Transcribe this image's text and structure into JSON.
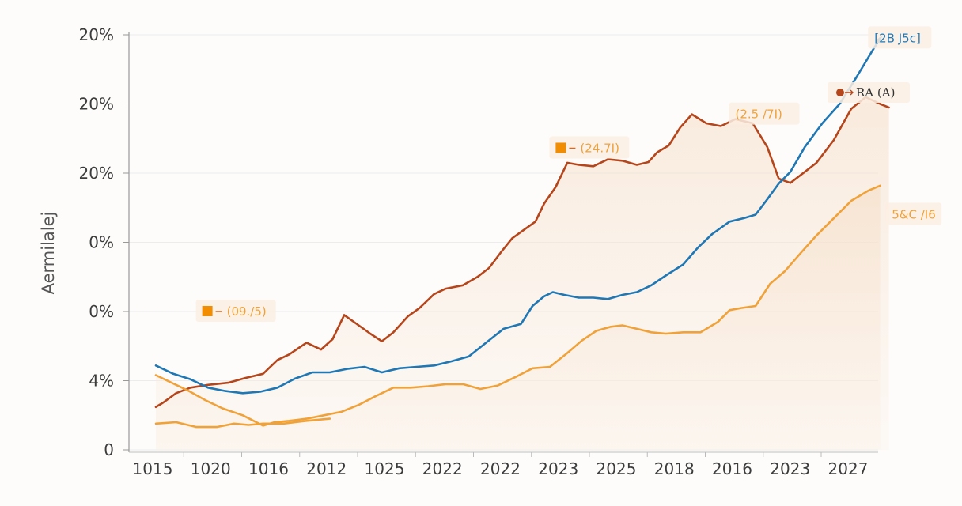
{
  "colors": {
    "dark_orange": "#b5461b",
    "blue": "#1f77b4",
    "orange": "#f0a23a",
    "annotation_box": "#fbeee2",
    "grid": "#ececec",
    "fill": "#f5e3d1"
  },
  "chart_data": {
    "type": "line",
    "title": "",
    "xlabel": "",
    "ylabel": "Aermilalej",
    "ylim": [
      0,
      6
    ],
    "y_ticks": [
      {
        "value": 0,
        "label": "0"
      },
      {
        "value": 1,
        "label": "4%"
      },
      {
        "value": 2,
        "label": "0%"
      },
      {
        "value": 3,
        "label": "0%"
      },
      {
        "value": 4,
        "label": "20%"
      },
      {
        "value": 5,
        "label": "20%"
      },
      {
        "value": 6,
        "label": "20%"
      }
    ],
    "xlim": [
      0,
      12.65
    ],
    "x_ticks": [
      {
        "value": 0,
        "label": "1015"
      },
      {
        "value": 1,
        "label": "1020"
      },
      {
        "value": 2,
        "label": "1016"
      },
      {
        "value": 3,
        "label": "2012"
      },
      {
        "value": 4,
        "label": "1025"
      },
      {
        "value": 5,
        "label": "2022"
      },
      {
        "value": 6,
        "label": "2022"
      },
      {
        "value": 7,
        "label": "2023"
      },
      {
        "value": 8,
        "label": "2025"
      },
      {
        "value": 9,
        "label": "2018"
      },
      {
        "value": 10,
        "label": "2016"
      },
      {
        "value": 11,
        "label": "2023"
      },
      {
        "value": 12,
        "label": "2027"
      }
    ],
    "grid": true,
    "series": [
      {
        "name": "RA (A)",
        "color": "#b5461b",
        "filled": true,
        "x": [
          0,
          0.12,
          0.35,
          0.6,
          0.9,
          1.25,
          1.55,
          1.85,
          2.1,
          2.3,
          2.6,
          2.85,
          3.05,
          3.25,
          3.5,
          3.7,
          3.9,
          4.1,
          4.35,
          4.55,
          4.8,
          5.0,
          5.3,
          5.55,
          5.75,
          5.95,
          6.15,
          6.35,
          6.55,
          6.7,
          6.9,
          7.1,
          7.3,
          7.55,
          7.8,
          8.05,
          8.3,
          8.5,
          8.65,
          8.85,
          9.05,
          9.25,
          9.5,
          9.75,
          10.0,
          10.3,
          10.55,
          10.75,
          10.95,
          11.2,
          11.4,
          11.7,
          12.0,
          12.25,
          12.5,
          12.65
        ],
        "values": [
          0.62,
          0.68,
          0.82,
          0.9,
          0.94,
          0.97,
          1.04,
          1.1,
          1.3,
          1.38,
          1.55,
          1.45,
          1.6,
          1.95,
          1.8,
          1.68,
          1.57,
          1.7,
          1.93,
          2.05,
          2.25,
          2.33,
          2.38,
          2.5,
          2.63,
          2.85,
          3.06,
          3.18,
          3.3,
          3.56,
          3.8,
          4.15,
          4.12,
          4.1,
          4.2,
          4.18,
          4.12,
          4.16,
          4.3,
          4.4,
          4.66,
          4.85,
          4.72,
          4.68,
          4.78,
          4.72,
          4.38,
          3.92,
          3.86,
          4.02,
          4.15,
          4.48,
          4.93,
          5.1,
          5.0,
          4.95
        ]
      },
      {
        "name": "[2B J5c]",
        "color": "#1f77b4",
        "filled": false,
        "x": [
          0,
          0.3,
          0.6,
          0.9,
          1.2,
          1.5,
          1.8,
          2.1,
          2.4,
          2.7,
          3.0,
          3.3,
          3.6,
          3.9,
          4.2,
          4.5,
          4.8,
          5.1,
          5.4,
          5.7,
          6.0,
          6.3,
          6.5,
          6.7,
          6.85,
          7.05,
          7.3,
          7.55,
          7.8,
          8.05,
          8.3,
          8.55,
          8.8,
          9.1,
          9.35,
          9.6,
          9.9,
          10.15,
          10.35,
          10.55,
          10.75,
          10.95,
          11.2,
          11.5,
          11.8,
          12.1,
          12.35,
          12.5
        ],
        "values": [
          1.22,
          1.1,
          1.02,
          0.9,
          0.85,
          0.82,
          0.84,
          0.9,
          1.03,
          1.12,
          1.12,
          1.17,
          1.2,
          1.12,
          1.18,
          1.2,
          1.22,
          1.28,
          1.35,
          1.55,
          1.75,
          1.82,
          2.08,
          2.22,
          2.28,
          2.24,
          2.2,
          2.2,
          2.18,
          2.24,
          2.28,
          2.38,
          2.52,
          2.68,
          2.92,
          3.12,
          3.3,
          3.35,
          3.4,
          3.62,
          3.85,
          4.02,
          4.38,
          4.72,
          5.0,
          5.4,
          5.75,
          5.95
        ]
      },
      {
        "name": "5&C /I6",
        "color": "#f0a23a",
        "filled": true,
        "x": [
          0,
          0.25,
          0.55,
          0.85,
          1.15,
          1.5,
          1.85,
          2.05,
          2.3,
          2.6,
          2.9,
          3.2,
          3.5,
          3.8,
          4.1,
          4.4,
          4.7,
          5.0,
          5.3,
          5.6,
          5.9,
          6.2,
          6.5,
          6.8,
          7.1,
          7.35,
          7.6,
          7.85,
          8.05,
          8.3,
          8.55,
          8.8,
          9.1,
          9.4,
          9.7,
          9.9,
          10.1,
          10.35,
          10.6,
          10.85,
          11.1,
          11.4,
          11.7,
          12.0,
          12.3,
          12.5
        ],
        "values": [
          1.08,
          0.98,
          0.86,
          0.72,
          0.6,
          0.5,
          0.35,
          0.4,
          0.42,
          0.45,
          0.5,
          0.55,
          0.65,
          0.78,
          0.9,
          0.9,
          0.92,
          0.95,
          0.95,
          0.88,
          0.93,
          1.05,
          1.18,
          1.2,
          1.4,
          1.58,
          1.72,
          1.78,
          1.8,
          1.75,
          1.7,
          1.68,
          1.7,
          1.7,
          1.85,
          2.02,
          2.05,
          2.08,
          2.4,
          2.58,
          2.82,
          3.1,
          3.35,
          3.6,
          3.75,
          3.82
        ]
      },
      {
        "name": "(09./5)",
        "color": "#f0a23a",
        "filled": false,
        "x": [
          0,
          0.35,
          0.7,
          1.05,
          1.35,
          1.6,
          1.85,
          2.2,
          2.6,
          3.0
        ],
        "values": [
          0.38,
          0.4,
          0.33,
          0.33,
          0.38,
          0.36,
          0.38,
          0.38,
          0.42,
          0.45
        ]
      }
    ],
    "annotations": [
      {
        "text": "(2.5 /7I)",
        "color": "#f0a23a",
        "x": 10.0,
        "value": 4.85,
        "marker": false
      },
      {
        "text": "(24.7I)",
        "color": "#f0a23a",
        "x": 6.9,
        "value": 4.36,
        "marker": true
      },
      {
        "text": "(09./5)",
        "color": "#f0a23a",
        "x": 0.8,
        "value": 2.0,
        "marker": true
      },
      {
        "text": "[2B J5c]",
        "color": "#1f77b4",
        "x": 12.4,
        "value": 5.95,
        "marker": false
      },
      {
        "text": "5&C /I6",
        "color": "#f0a23a",
        "x": 12.7,
        "value": 3.4,
        "marker": false
      }
    ],
    "legend": {
      "placement": "top-right",
      "label": "RA (A)",
      "color": "#b5461b"
    }
  }
}
